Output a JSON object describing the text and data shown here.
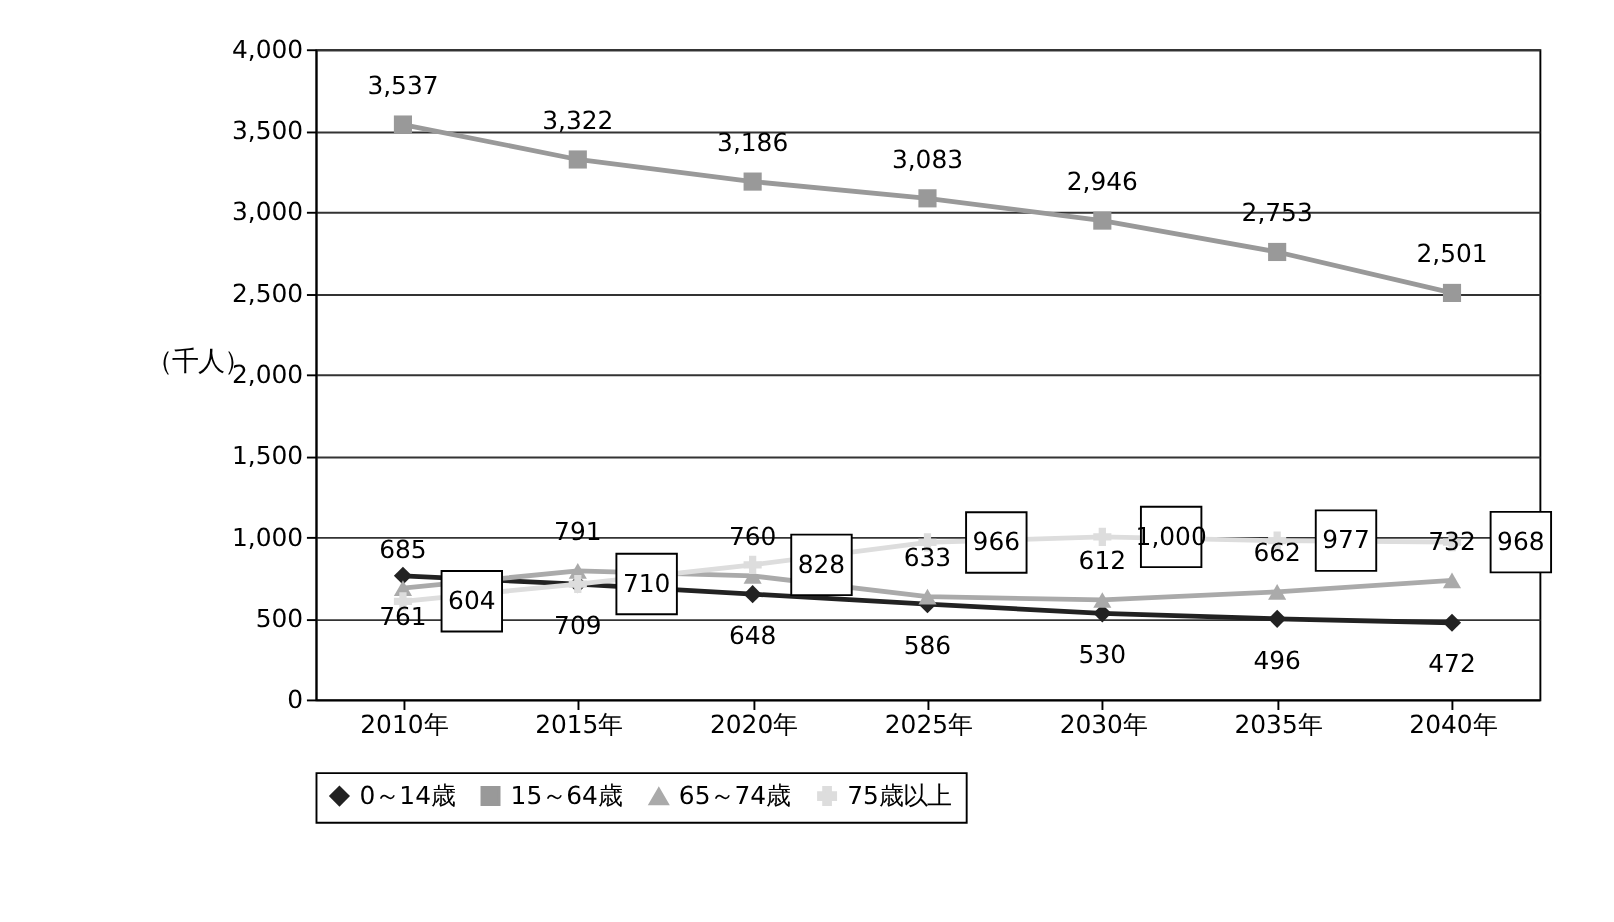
{
  "chart_data": {
    "type": "line",
    "ylabel": "（千人）",
    "categories": [
      "2010年",
      "2015年",
      "2020年",
      "2025年",
      "2030年",
      "2035年",
      "2040年"
    ],
    "series": [
      {
        "name": "0～14歳",
        "color": "#222222",
        "marker": "diamond",
        "values": [
          761,
          709,
          648,
          586,
          530,
          496,
          472
        ]
      },
      {
        "name": "15～64歳",
        "color": "#999999",
        "marker": "square",
        "values": [
          3537,
          3322,
          3186,
          3083,
          2946,
          2753,
          2501
        ],
        "value_labels": [
          "3,537",
          "3,322",
          "3,186",
          "3,083",
          "2,946",
          "2,753",
          "2,501"
        ]
      },
      {
        "name": "65～74歳",
        "color": "#aaaaaa",
        "marker": "triangle",
        "values": [
          685,
          791,
          760,
          633,
          612,
          662,
          732
        ]
      },
      {
        "name": "75歳以上",
        "color": "#dddddd",
        "marker": "cross",
        "values": [
          604,
          710,
          828,
          966,
          1000,
          977,
          968
        ],
        "value_labels": [
          "604",
          "710",
          "828",
          "966",
          "1,000",
          "977",
          "968"
        ]
      }
    ],
    "ylim": [
      0,
      4000
    ],
    "yticks": [
      0,
      {
        "value": 500,
        "label": "500"
      },
      {
        "value": 1000,
        "label": "1,000"
      },
      {
        "value": 1500,
        "label": "1,500"
      },
      {
        "value": 2000,
        "label": "2,000"
      },
      {
        "value": 2500,
        "label": "2,500"
      },
      {
        "value": 3000,
        "label": "3,000"
      },
      {
        "value": 3500,
        "label": "3,500"
      },
      {
        "value": 4000,
        "label": "4,000"
      }
    ],
    "grid": "y",
    "legend": "bottom",
    "data_labels": true,
    "line_style": "solid"
  }
}
